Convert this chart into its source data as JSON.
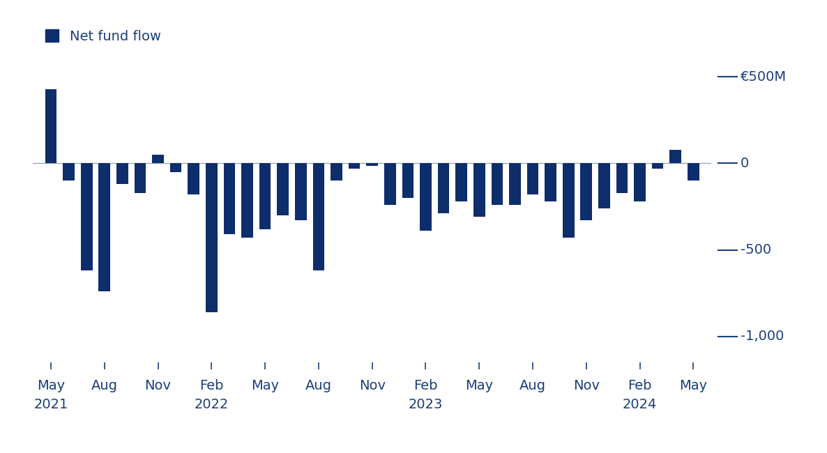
{
  "legend_label": "Net fund flow",
  "bar_color": "#0d2d6b",
  "zero_line_color": "#9aaabf",
  "label_color": "#1b3f7a",
  "background_color": "#ffffff",
  "ylim_min": -1150,
  "ylim_max": 630,
  "bar_width": 0.65,
  "tick_positions": [
    0,
    3,
    6,
    9,
    12,
    15,
    18,
    21,
    24,
    27,
    30,
    33,
    36
  ],
  "tick_labels_row1": [
    "May",
    "Aug",
    "Nov",
    "Feb",
    "May",
    "Aug",
    "Nov",
    "Feb",
    "May",
    "Aug",
    "Nov",
    "Feb",
    "May"
  ],
  "tick_labels_row2": [
    "2021",
    "",
    "",
    "2022",
    "",
    "",
    "",
    "2023",
    "",
    "",
    "",
    "2024",
    ""
  ],
  "right_annotations": [
    {
      "value": 500,
      "label": "€500M"
    },
    {
      "value": 0,
      "label": "0"
    },
    {
      "value": -500,
      "label": "-500"
    },
    {
      "value": -1000,
      "label": "-1,000"
    }
  ],
  "bar_values": [
    430,
    -100,
    -620,
    -740,
    -120,
    -170,
    50,
    -50,
    -180,
    -860,
    -410,
    -430,
    -380,
    -300,
    -330,
    -620,
    -100,
    -30,
    -15,
    -240,
    -200,
    -390,
    -290,
    -220,
    -310,
    -240,
    -240,
    -180,
    -220,
    -430,
    -330,
    -260,
    -170,
    -220,
    -30,
    80,
    -100
  ]
}
